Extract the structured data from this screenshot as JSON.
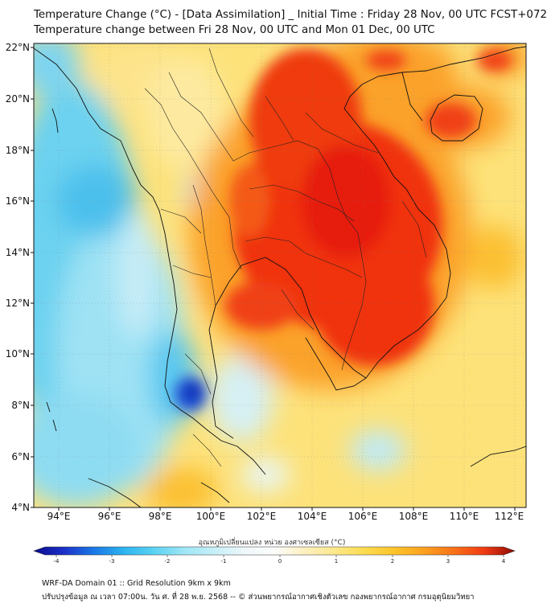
{
  "title_line1": "Temperature Change (°C) - [Data Assimilation] _ Initial Time : Friday 28 Nov, 00 UTC FCST+072",
  "title_line2": "Temperature change between Fri 28 Nov, 00 UTC and Mon 01 Dec, 00 UTC",
  "lat_labels": [
    "22°N",
    "20°N",
    "18°N",
    "16°N",
    "14°N",
    "12°N",
    "10°N",
    "8°N",
    "6°N",
    "4°N"
  ],
  "lon_labels": [
    "94°E",
    "96°E",
    "98°E",
    "100°E",
    "102°E",
    "104°E",
    "106°E",
    "108°E",
    "110°E",
    "112°E"
  ],
  "colorbar": {
    "title": "อุณหภูมิเปลี่ยนแปลง หน่วย องศาเซลเซียส (°C)",
    "ticks": [
      "-4",
      "-3",
      "-2",
      "-1",
      "0",
      "1",
      "2",
      "3",
      "4"
    ],
    "range": [
      -4,
      4
    ],
    "colors": [
      "#0a0a8c",
      "#1c30c8",
      "#1a78e6",
      "#2eb4f0",
      "#5ad2f2",
      "#9ee6f6",
      "#dcf4f8",
      "#fcfcfc",
      "#fdf0c0",
      "#fde88c",
      "#fddc50",
      "#fcc428",
      "#fca020",
      "#f87018",
      "#f03a12",
      "#d81010",
      "#8c0a06"
    ]
  },
  "footer_line1": "WRF-DA Domain 01 :: Grid Resolution 9km x 9km",
  "footer_line2": "ปรับปรุงข้อมูล ณ เวลา 07:00น. วัน ศ. ที่ 28 พ.ย. 2568 -- © ส่วนพยากรณ์อากาศเชิงตัวเลข กองพยากรณ์อากาศ กรมอุตุนิยมวิทยา"
}
